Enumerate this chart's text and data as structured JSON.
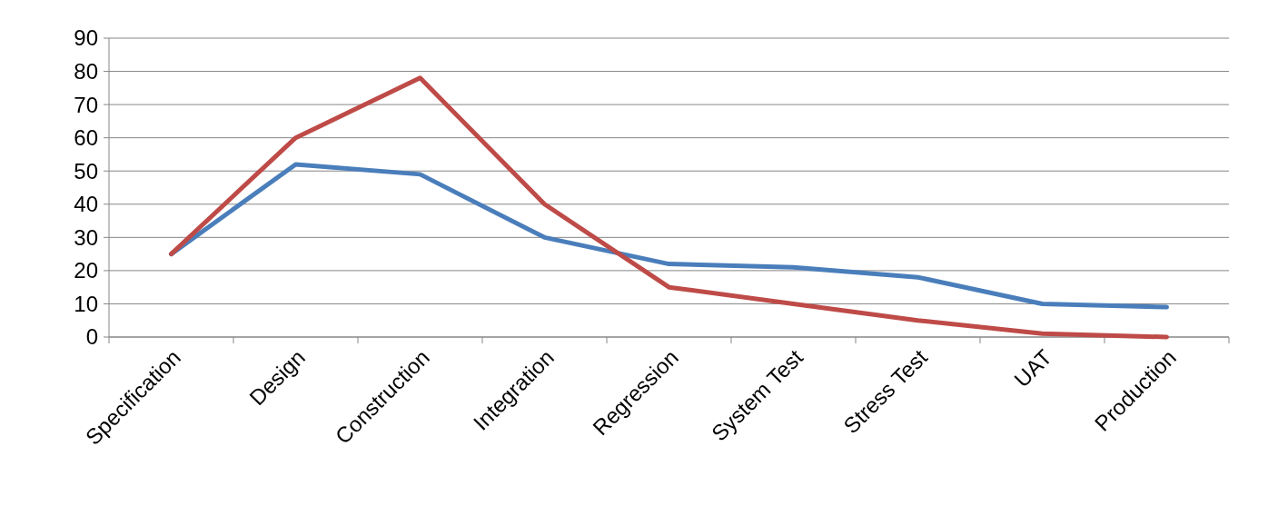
{
  "chart_data": {
    "type": "line",
    "categories": [
      "Specification",
      "Design",
      "Construction",
      "Integration",
      "Regression",
      "System Test",
      "Stress Test",
      "UAT",
      "Production"
    ],
    "series": [
      {
        "color": "#4a7ebb",
        "values": [
          25,
          52,
          49,
          30,
          22,
          21,
          18,
          10,
          9
        ]
      },
      {
        "color": "#be4b48",
        "values": [
          25,
          60,
          78,
          40,
          15,
          10,
          5,
          1,
          0
        ]
      }
    ],
    "ylim": [
      0,
      90
    ],
    "yticks": [
      0,
      10,
      20,
      30,
      40,
      50,
      60,
      70,
      80,
      90
    ],
    "grid": "y",
    "marker": "none",
    "line_style": "solid"
  }
}
